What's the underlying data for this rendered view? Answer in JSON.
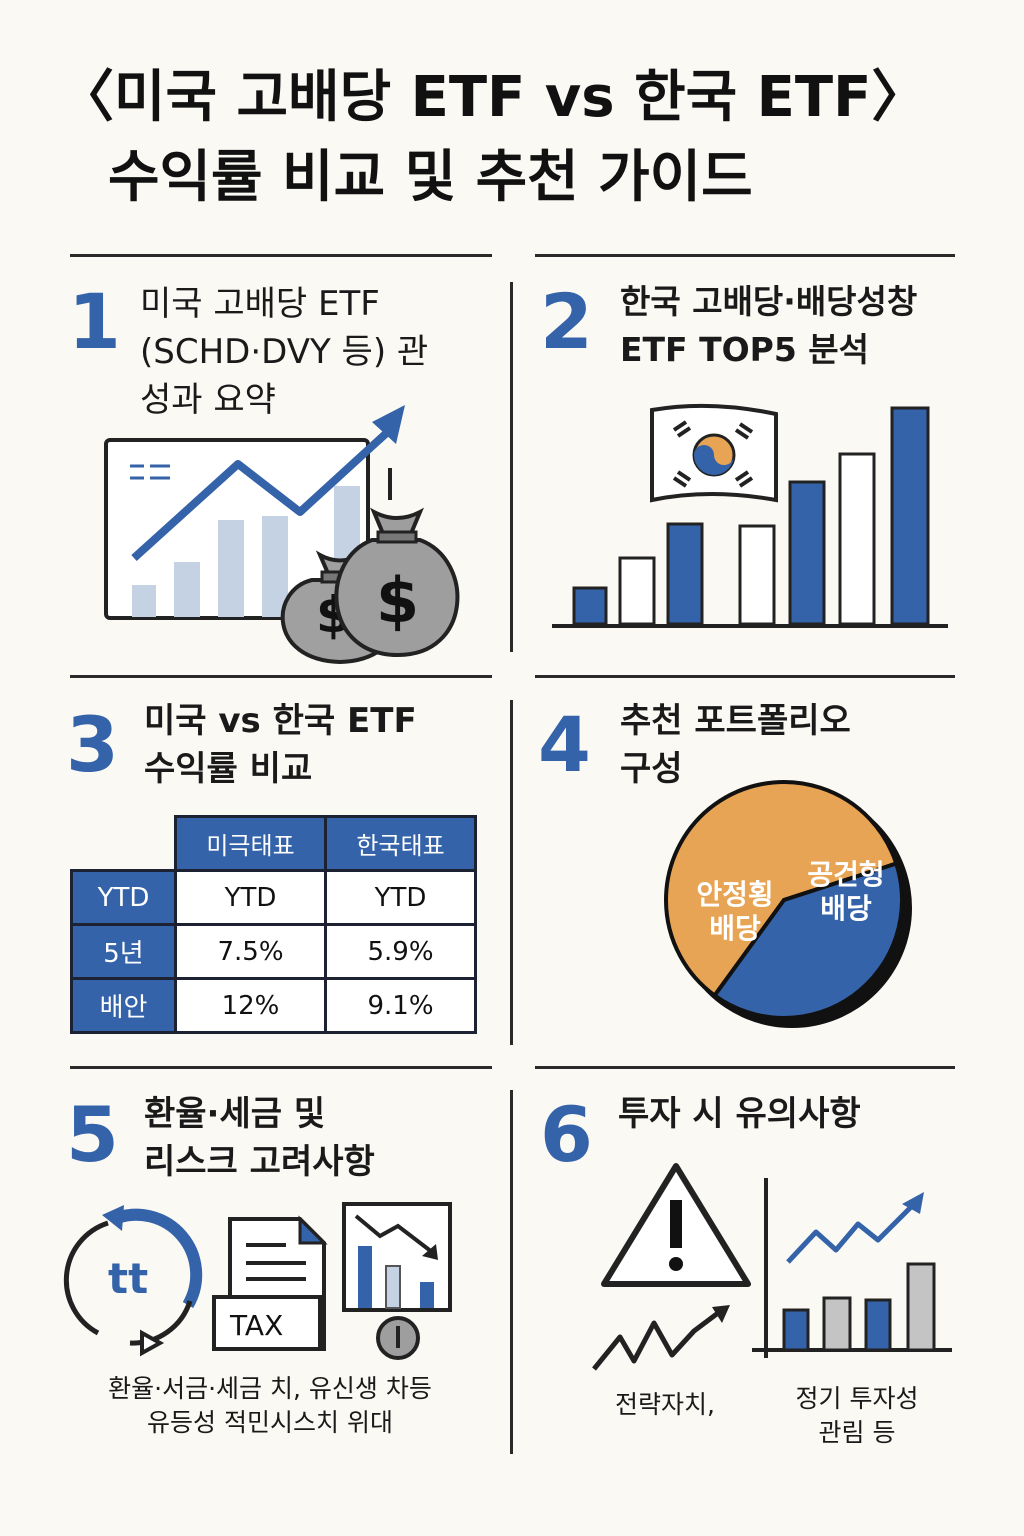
{
  "title": {
    "line1": "〈미국 고배당 ETF vs 한국 ETF〉",
    "line2": "수익률 비교 및 추천 가이드"
  },
  "sections": [
    {
      "number": "1",
      "lines": [
        "미국 고배당 ETF",
        "(SCHD·DVY 등) 관",
        "성과 요약"
      ],
      "icon": "chart-with-money-bags-icon"
    },
    {
      "number": "2",
      "lines": [
        "한국 고배당·배당성창",
        "ETF TOP5 분석"
      ],
      "icon": "korean-flag-bar-chart-icon"
    },
    {
      "number": "3",
      "lines": [
        "미국 vs 한국 ETF",
        "수익률 비교"
      ]
    },
    {
      "number": "4",
      "lines": [
        "추천 포트폴리오",
        "구성"
      ]
    },
    {
      "number": "5",
      "lines": [
        "환율·세금 및",
        "리스크 고려사항"
      ]
    },
    {
      "number": "6",
      "lines": [
        "투자 시 유의사항"
      ]
    }
  ],
  "comparison_table": {
    "headers": [
      "미극태표",
      "한국태표"
    ],
    "rows": [
      {
        "label": "YTD",
        "values": [
          "YTD",
          "YTD"
        ]
      },
      {
        "label": "5년",
        "values": [
          "7.5%",
          "5.9%"
        ]
      },
      {
        "label": "배안",
        "values": [
          "12%",
          "9.1%"
        ]
      }
    ]
  },
  "portfolio_pie": {
    "slices": [
      {
        "label_line1": "안정횡",
        "label_line2": "배당",
        "share": 0.6,
        "color": "#e8a455"
      },
      {
        "label_line1": "공건헝",
        "label_line2": "배당",
        "share": 0.4,
        "color": "#3463aa"
      }
    ]
  },
  "risk_section": {
    "tax_label": "TAX",
    "currency_label": "tt",
    "caption_line1": "환율·서금·세금 치, 유신생 차등",
    "caption_line2": "유등성 적민시스치 위대"
  },
  "caution_section": {
    "left_caption": "전략자치,",
    "right_caption_line1": "정기 투자성",
    "right_caption_line2": "관림 등"
  },
  "colors": {
    "accent_blue": "#3463aa",
    "orange": "#e8a455",
    "light_blue": "#c4d2e3",
    "money_gray": "#9e9e9e"
  }
}
